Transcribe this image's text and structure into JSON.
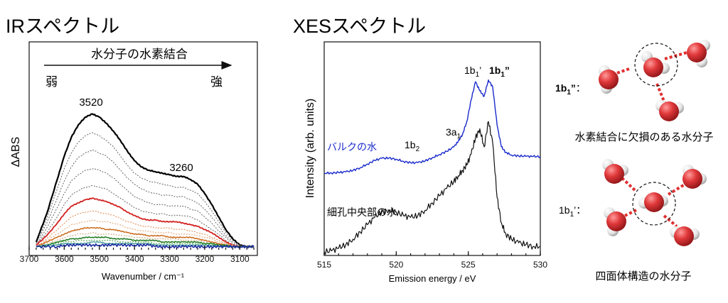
{
  "chart_data": [
    {
      "type": "line",
      "title": "IRスペクトル",
      "xlabel": "Wavenumber / cm⁻¹",
      "ylabel": "ΔABS",
      "xlim": [
        3700,
        3050
      ],
      "ylim": [
        0,
        1
      ],
      "x_ticks": [
        "3700",
        "3600",
        "3500",
        "3400",
        "3300",
        "3200",
        "3100"
      ],
      "x_tick_values": [
        3700,
        3600,
        3500,
        3400,
        3300,
        3200,
        3100
      ],
      "annotations": {
        "arrow_label": "水分子の水素結合",
        "weak": "弱",
        "strong": "強",
        "peak1": "3520",
        "peak2": "3260"
      },
      "x": [
        3680,
        3650,
        3620,
        3600,
        3580,
        3560,
        3540,
        3520,
        3500,
        3480,
        3460,
        3440,
        3420,
        3400,
        3380,
        3360,
        3340,
        3320,
        3300,
        3280,
        3260,
        3240,
        3220,
        3200,
        3180,
        3160,
        3140,
        3120,
        3100,
        3080,
        3060
      ],
      "series": [
        {
          "name": "max",
          "color": "#000000",
          "style": "solid",
          "width": 2.2,
          "values": [
            0.05,
            0.23,
            0.45,
            0.6,
            0.72,
            0.8,
            0.85,
            0.87,
            0.85,
            0.81,
            0.76,
            0.7,
            0.63,
            0.57,
            0.53,
            0.51,
            0.5,
            0.49,
            0.48,
            0.47,
            0.47,
            0.45,
            0.42,
            0.36,
            0.29,
            0.21,
            0.13,
            0.07,
            0.03,
            0.02,
            0.02
          ]
        },
        {
          "name": "d1",
          "color": "#666666",
          "style": "dotted",
          "width": 1,
          "values": [
            0.04,
            0.2,
            0.39,
            0.52,
            0.62,
            0.69,
            0.73,
            0.75,
            0.73,
            0.7,
            0.66,
            0.6,
            0.54,
            0.49,
            0.46,
            0.44,
            0.43,
            0.42,
            0.41,
            0.4,
            0.4,
            0.38,
            0.36,
            0.31,
            0.25,
            0.18,
            0.11,
            0.06,
            0.03,
            0.02,
            0.02
          ]
        },
        {
          "name": "d2",
          "color": "#666666",
          "style": "dotted",
          "width": 1,
          "values": [
            0.04,
            0.17,
            0.33,
            0.44,
            0.53,
            0.59,
            0.62,
            0.64,
            0.62,
            0.6,
            0.56,
            0.51,
            0.46,
            0.42,
            0.39,
            0.37,
            0.36,
            0.35,
            0.35,
            0.34,
            0.34,
            0.32,
            0.3,
            0.26,
            0.21,
            0.15,
            0.09,
            0.05,
            0.02,
            0.02,
            0.02
          ]
        },
        {
          "name": "d3",
          "color": "#666666",
          "style": "dotted",
          "width": 1,
          "values": [
            0.03,
            0.14,
            0.27,
            0.36,
            0.44,
            0.48,
            0.51,
            0.52,
            0.51,
            0.49,
            0.46,
            0.42,
            0.38,
            0.34,
            0.32,
            0.3,
            0.29,
            0.29,
            0.28,
            0.28,
            0.28,
            0.26,
            0.25,
            0.21,
            0.17,
            0.12,
            0.08,
            0.04,
            0.02,
            0.02,
            0.02
          ]
        },
        {
          "name": "d4",
          "color": "#666666",
          "style": "dotted",
          "width": 1,
          "values": [
            0.03,
            0.11,
            0.21,
            0.29,
            0.35,
            0.38,
            0.4,
            0.41,
            0.4,
            0.39,
            0.36,
            0.33,
            0.3,
            0.27,
            0.25,
            0.24,
            0.23,
            0.23,
            0.22,
            0.22,
            0.22,
            0.21,
            0.19,
            0.16,
            0.13,
            0.1,
            0.06,
            0.03,
            0.02,
            0.02,
            0.02
          ]
        },
        {
          "name": "red",
          "color": "#d42020",
          "style": "solid",
          "width": 1.8,
          "values": [
            0.03,
            0.09,
            0.17,
            0.23,
            0.28,
            0.3,
            0.32,
            0.33,
            0.32,
            0.31,
            0.29,
            0.27,
            0.24,
            0.22,
            0.2,
            0.19,
            0.19,
            0.18,
            0.18,
            0.18,
            0.17,
            0.16,
            0.15,
            0.13,
            0.11,
            0.08,
            0.05,
            0.03,
            0.02,
            0.02,
            0.02
          ]
        },
        {
          "name": "o1",
          "color": "#e08850",
          "style": "dotted",
          "width": 1,
          "values": [
            0.02,
            0.07,
            0.13,
            0.17,
            0.21,
            0.23,
            0.24,
            0.25,
            0.24,
            0.23,
            0.22,
            0.2,
            0.18,
            0.17,
            0.15,
            0.15,
            0.14,
            0.14,
            0.14,
            0.13,
            0.13,
            0.12,
            0.11,
            0.1,
            0.08,
            0.06,
            0.04,
            0.03,
            0.02,
            0.02,
            0.02
          ]
        },
        {
          "name": "o2",
          "color": "#e0a070",
          "style": "dotted",
          "width": 1,
          "values": [
            0.02,
            0.06,
            0.1,
            0.13,
            0.16,
            0.17,
            0.18,
            0.19,
            0.18,
            0.18,
            0.17,
            0.16,
            0.14,
            0.13,
            0.12,
            0.12,
            0.11,
            0.11,
            0.11,
            0.1,
            0.1,
            0.1,
            0.09,
            0.08,
            0.07,
            0.05,
            0.04,
            0.03,
            0.02,
            0.02,
            0.02
          ]
        },
        {
          "name": "orange",
          "color": "#cc6a1a",
          "style": "solid",
          "width": 1.5,
          "values": [
            0.02,
            0.05,
            0.08,
            0.1,
            0.12,
            0.13,
            0.14,
            0.14,
            0.14,
            0.13,
            0.13,
            0.12,
            0.11,
            0.1,
            0.1,
            0.09,
            0.09,
            0.09,
            0.08,
            0.08,
            0.08,
            0.08,
            0.07,
            0.06,
            0.05,
            0.04,
            0.03,
            0.02,
            0.02,
            0.02,
            0.02
          ]
        },
        {
          "name": "o3",
          "color": "#c8a070",
          "style": "dotted",
          "width": 1,
          "values": [
            0.02,
            0.04,
            0.06,
            0.08,
            0.09,
            0.1,
            0.1,
            0.11,
            0.1,
            0.1,
            0.1,
            0.09,
            0.09,
            0.08,
            0.08,
            0.07,
            0.07,
            0.07,
            0.07,
            0.07,
            0.06,
            0.06,
            0.06,
            0.05,
            0.04,
            0.03,
            0.03,
            0.02,
            0.02,
            0.02,
            0.02
          ]
        },
        {
          "name": "green",
          "color": "#1e7a1e",
          "style": "solid",
          "width": 1.5,
          "values": [
            0.02,
            0.03,
            0.05,
            0.06,
            0.07,
            0.07,
            0.08,
            0.08,
            0.08,
            0.08,
            0.07,
            0.07,
            0.07,
            0.06,
            0.06,
            0.06,
            0.06,
            0.05,
            0.05,
            0.05,
            0.05,
            0.05,
            0.05,
            0.04,
            0.04,
            0.03,
            0.03,
            0.02,
            0.02,
            0.02,
            0.02
          ]
        },
        {
          "name": "g2",
          "color": "#3a9a3a",
          "style": "dotted",
          "width": 1,
          "values": [
            0.02,
            0.03,
            0.04,
            0.05,
            0.05,
            0.06,
            0.06,
            0.06,
            0.06,
            0.06,
            0.06,
            0.05,
            0.05,
            0.05,
            0.05,
            0.05,
            0.04,
            0.04,
            0.04,
            0.04,
            0.04,
            0.04,
            0.04,
            0.03,
            0.03,
            0.03,
            0.02,
            0.02,
            0.02,
            0.02,
            0.02
          ]
        },
        {
          "name": "teal",
          "color": "#2a8a8a",
          "style": "solid",
          "width": 1.2,
          "values": [
            0.02,
            0.03,
            0.03,
            0.04,
            0.04,
            0.04,
            0.04,
            0.05,
            0.05,
            0.04,
            0.04,
            0.04,
            0.04,
            0.04,
            0.04,
            0.04,
            0.03,
            0.03,
            0.03,
            0.03,
            0.03,
            0.03,
            0.03,
            0.03,
            0.03,
            0.02,
            0.02,
            0.02,
            0.02,
            0.02,
            0.02
          ]
        },
        {
          "name": "blue",
          "color": "#1a2aa0",
          "style": "solid",
          "width": 1.6,
          "values": [
            0.02,
            0.02,
            0.02,
            0.03,
            0.03,
            0.03,
            0.03,
            0.03,
            0.03,
            0.03,
            0.03,
            0.03,
            0.03,
            0.03,
            0.03,
            0.03,
            0.02,
            0.02,
            0.02,
            0.02,
            0.02,
            0.02,
            0.02,
            0.02,
            0.02,
            0.02,
            0.02,
            0.02,
            0.02,
            0.02,
            0.02
          ]
        }
      ]
    },
    {
      "type": "line",
      "title": "XESスペクトル",
      "xlabel": "Emission energy / eV",
      "ylabel": "Intensity (arb. units)",
      "xlim": [
        515,
        530
      ],
      "ylim": [
        0,
        1
      ],
      "x_ticks": [
        "515",
        "520",
        "525",
        "530"
      ],
      "x_tick_values": [
        515,
        520,
        525,
        530
      ],
      "annotations": {
        "peak_1b2": "1b",
        "peak_1b2_sub": "2",
        "peak_3a1": "3a",
        "peak_3a1_sub": "1",
        "peak_1b1p": "1b",
        "peak_1b1p_sub": "1",
        "peak_1b1p_mark": "’",
        "peak_1b1pp": "1b",
        "peak_1b1pp_sub": "1",
        "peak_1b1pp_mark": "”",
        "bulk_label": "バルクの水",
        "pore_label": "細孔中央部の水"
      },
      "x": [
        515,
        515.5,
        516,
        516.5,
        517,
        517.5,
        518,
        518.5,
        519,
        519.5,
        520,
        520.5,
        521,
        521.5,
        522,
        522.5,
        523,
        523.5,
        524,
        524.3,
        524.6,
        524.9,
        525.2,
        525.5,
        525.8,
        526.1,
        526.4,
        526.7,
        527,
        527.3,
        527.6,
        528,
        528.5,
        529,
        529.5,
        530
      ],
      "series": [
        {
          "name": "バルクの水",
          "color": "#1a2acc",
          "width": 1.4,
          "values": [
            0.455,
            0.456,
            0.458,
            0.462,
            0.47,
            0.485,
            0.505,
            0.525,
            0.537,
            0.538,
            0.532,
            0.52,
            0.512,
            0.513,
            0.522,
            0.54,
            0.558,
            0.575,
            0.6,
            0.63,
            0.67,
            0.74,
            0.86,
            0.96,
            0.91,
            0.88,
            0.97,
            0.93,
            0.72,
            0.6,
            0.57,
            0.555,
            0.55,
            0.548,
            0.547,
            0.546
          ]
        },
        {
          "name": "細孔中央部の水",
          "color": "#111111",
          "width": 1.2,
          "values": [
            0.02,
            0.025,
            0.04,
            0.06,
            0.09,
            0.13,
            0.17,
            0.21,
            0.24,
            0.25,
            0.24,
            0.22,
            0.21,
            0.22,
            0.25,
            0.29,
            0.33,
            0.37,
            0.41,
            0.44,
            0.47,
            0.5,
            0.56,
            0.65,
            0.7,
            0.6,
            0.74,
            0.62,
            0.32,
            0.18,
            0.12,
            0.09,
            0.07,
            0.06,
            0.05,
            0.05
          ]
        }
      ]
    }
  ],
  "schematics": {
    "top_label": "1b",
    "top_label_sub": "1",
    "top_label_mark": "”",
    "top_label_colon": "：",
    "top_caption": "水素結合に欠損のある水分子",
    "bottom_label": "1b",
    "bottom_label_sub": "1",
    "bottom_label_mark": "’",
    "bottom_label_colon": "：",
    "bottom_caption": "四面体構造の水分子",
    "oxygen_color": "#d8282a",
    "hydrogen_color": "#e8e8e8",
    "bond_color": "#e03030"
  }
}
